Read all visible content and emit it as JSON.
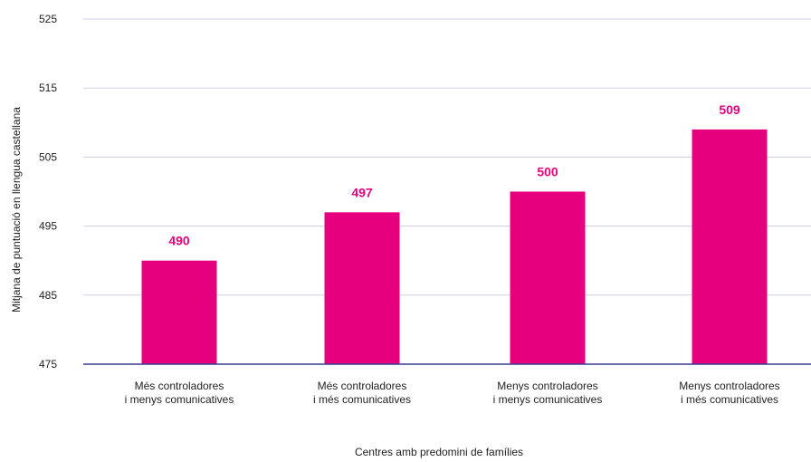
{
  "chart_data": {
    "type": "bar",
    "categories": [
      [
        "Més controladores",
        "i menys comunicatives"
      ],
      [
        "Més controladores",
        "i més comunicatives"
      ],
      [
        "Menys controladores",
        "i menys comunicatives"
      ],
      [
        "Menys controladores",
        "i més comunicatives"
      ]
    ],
    "values": [
      490,
      497,
      500,
      509
    ],
    "data_labels": [
      "490",
      "497",
      "500",
      "509"
    ],
    "xlabel": "Centres amb predomini de famílies",
    "ylabel": "Mitjana de puntuació en llengua castellana",
    "ylim": [
      475,
      525
    ],
    "yticks": [
      475,
      485,
      495,
      505,
      515,
      525
    ],
    "grid": true,
    "legend": "none",
    "colors": {
      "bar": "#e6007e",
      "data_label": "#e6007e",
      "grid": "#cfcfe6",
      "baseline": "#3b3b8f"
    }
  }
}
